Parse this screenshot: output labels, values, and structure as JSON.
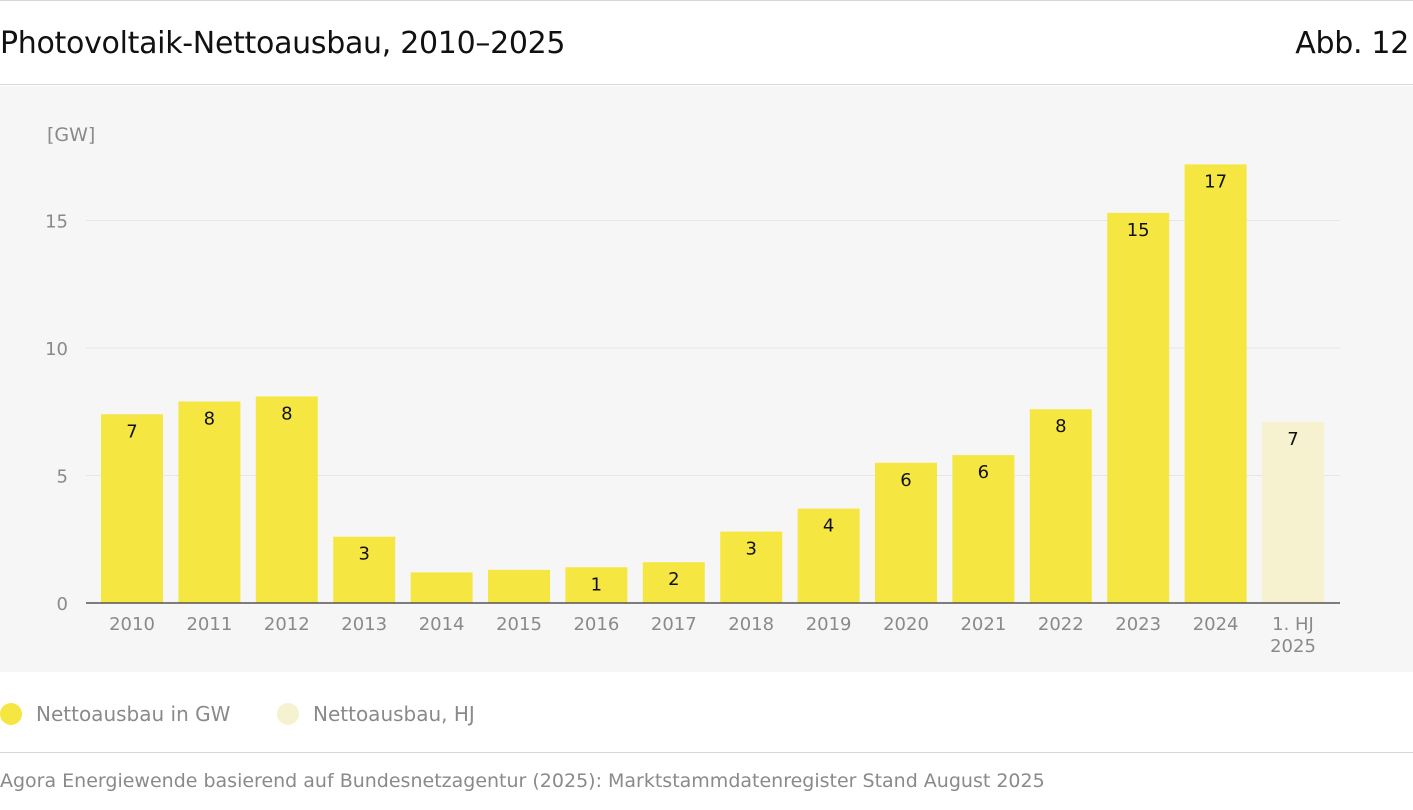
{
  "header": {
    "title": "Photovoltaik-Nettoausbau, 2010–2025",
    "figure_id": "Abb. 12"
  },
  "colors": {
    "bar": "#f5e642",
    "bar_half_year": "#f6f2cf",
    "axis": "#555555",
    "grid": "#e6e6e6",
    "tick_text": "#8a8a8a",
    "label_text": "#111111",
    "panel": "#f6f6f6"
  },
  "chart_data": {
    "type": "bar",
    "title": "Photovoltaik-Nettoausbau, 2010–2025",
    "ylabel": "[GW]",
    "xlabel": "",
    "ylim": [
      0,
      17.5
    ],
    "yticks": [
      0,
      5,
      10,
      15
    ],
    "grid": true,
    "categories": [
      "2010",
      "2011",
      "2012",
      "2013",
      "2014",
      "2015",
      "2016",
      "2017",
      "2018",
      "2019",
      "2020",
      "2021",
      "2022",
      "2023",
      "2024",
      "1. HJ 2025"
    ],
    "category_lines": [
      [
        "2010"
      ],
      [
        "2011"
      ],
      [
        "2012"
      ],
      [
        "2013"
      ],
      [
        "2014"
      ],
      [
        "2015"
      ],
      [
        "2016"
      ],
      [
        "2017"
      ],
      [
        "2018"
      ],
      [
        "2019"
      ],
      [
        "2020"
      ],
      [
        "2021"
      ],
      [
        "2022"
      ],
      [
        "2023"
      ],
      [
        "2024"
      ],
      [
        "1. HJ",
        "2025"
      ]
    ],
    "series": [
      {
        "name": "Nettoausbau in GW",
        "values": [
          7.4,
          7.9,
          8.1,
          2.6,
          1.2,
          1.3,
          1.4,
          1.6,
          2.8,
          3.7,
          5.5,
          5.8,
          7.6,
          15.3,
          17.2,
          null
        ],
        "labels": [
          "7",
          "8",
          "8",
          "3",
          "",
          "",
          "1",
          "2",
          "3",
          "4",
          "6",
          "6",
          "8",
          "15",
          "17",
          ""
        ]
      },
      {
        "name": "Nettoausbau, HJ",
        "values": [
          null,
          null,
          null,
          null,
          null,
          null,
          null,
          null,
          null,
          null,
          null,
          null,
          null,
          null,
          null,
          7.1
        ],
        "labels": [
          "",
          "",
          "",
          "",
          "",
          "",
          "",
          "",
          "",
          "",
          "",
          "",
          "",
          "",
          "",
          "7"
        ]
      }
    ],
    "legend": "bottom-left"
  },
  "legend": {
    "items": [
      {
        "label": "Nettoausbau in GW",
        "color": "#f5e642"
      },
      {
        "label": "Nettoausbau, HJ",
        "color": "#f6f2cf"
      }
    ]
  },
  "footer": {
    "source": "Agora Energiewende basierend auf Bundesnetzagentur (2025): Marktstammdatenregister Stand August 2025"
  }
}
